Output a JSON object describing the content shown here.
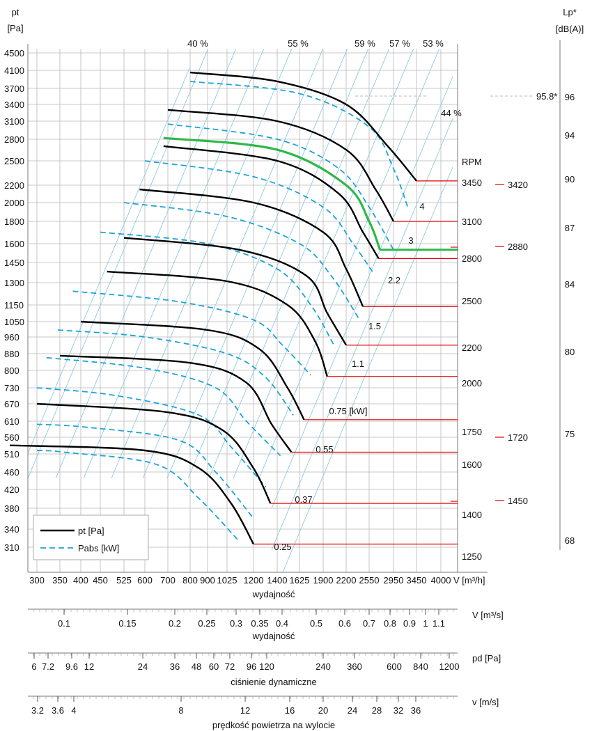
{
  "colors": {
    "grid": "#b8b8b8",
    "eff_line": "#7fc4e0",
    "pt_curve": "#000000",
    "power_curve": "#1ba4d8",
    "rpm_line": "#e00000",
    "highlight_curve": "#2db84a",
    "ref_line": "#bbbbbb"
  },
  "chart_data": {
    "type": "line",
    "scale": "log",
    "y_axis": {
      "unit_top": "pt",
      "unit_bottom": "[Pa]",
      "ticks": [
        4500,
        4100,
        3700,
        3400,
        3100,
        2800,
        2500,
        2200,
        2000,
        1800,
        1600,
        1450,
        1300,
        1150,
        1050,
        960,
        880,
        800,
        730,
        670,
        610,
        560,
        510,
        460,
        420,
        380,
        340,
        310
      ]
    },
    "x_axis": {
      "ticks": [
        300,
        350,
        400,
        450,
        525,
        600,
        700,
        800,
        900,
        1025,
        1200,
        1400,
        1625,
        1900,
        2200,
        2550,
        2950,
        3450,
        4000
      ],
      "unit_label": "V [m³/h]",
      "label": "wydajność"
    },
    "right_axis": {
      "unit_top": "Lp*",
      "unit_bottom": "[dB(A)]",
      "ticks": [
        "96",
        "94",
        "90",
        "87",
        "84",
        "80",
        "75",
        "68"
      ],
      "marker": "95.8*",
      "marker_value": 95.8
    },
    "efficiency_labels": [
      "40 %",
      "55 %",
      "59 %",
      "57 %",
      "53 %",
      "44 %"
    ],
    "rpm_header": "RPM",
    "legend": [
      {
        "key": "pt",
        "label": "pt [Pa]",
        "style": "solid"
      },
      {
        "key": "pabs",
        "label": "Pabs [kW]",
        "style": "dashed"
      }
    ],
    "pt_curves": [
      {
        "rpm": 3450,
        "points": [
          [
            800,
            4050
          ],
          [
            1400,
            3850
          ],
          [
            2200,
            3400
          ],
          [
            2850,
            2700
          ],
          [
            3450,
            2250
          ]
        ]
      },
      {
        "rpm": 3100,
        "points": [
          [
            700,
            3300
          ],
          [
            1400,
            3100
          ],
          [
            2200,
            2650
          ],
          [
            2650,
            2150
          ],
          [
            2950,
            1800
          ]
        ]
      },
      {
        "rpm": 2880,
        "highlight": true,
        "points": [
          [
            680,
            2820
          ],
          [
            1400,
            2650
          ],
          [
            2200,
            2200
          ],
          [
            2550,
            1800
          ],
          [
            2720,
            1550
          ]
        ]
      },
      {
        "rpm": 2800,
        "points": [
          [
            680,
            2700
          ],
          [
            1400,
            2500
          ],
          [
            2100,
            2100
          ],
          [
            2450,
            1700
          ],
          [
            2700,
            1480
          ]
        ]
      },
      {
        "rpm": 2500,
        "points": [
          [
            580,
            2150
          ],
          [
            1200,
            2000
          ],
          [
            1900,
            1700
          ],
          [
            2200,
            1400
          ],
          [
            2450,
            1140
          ]
        ]
      },
      {
        "rpm": 2200,
        "points": [
          [
            525,
            1650
          ],
          [
            1100,
            1550
          ],
          [
            1700,
            1350
          ],
          [
            1950,
            1100
          ],
          [
            2200,
            920
          ]
        ]
      },
      {
        "rpm": 2000,
        "points": [
          [
            470,
            1380
          ],
          [
            1025,
            1310
          ],
          [
            1500,
            1150
          ],
          [
            1800,
            940
          ],
          [
            1950,
            775
          ]
        ]
      },
      {
        "rpm": 1750,
        "points": [
          [
            400,
            1050
          ],
          [
            900,
            1000
          ],
          [
            1250,
            900
          ],
          [
            1500,
            730
          ],
          [
            1675,
            615
          ]
        ]
      },
      {
        "rpm": 1600,
        "points": [
          [
            350,
            870
          ],
          [
            800,
            835
          ],
          [
            1150,
            750
          ],
          [
            1350,
            600
          ],
          [
            1540,
            515
          ]
        ]
      },
      {
        "rpm": 1400,
        "points": [
          [
            300,
            670
          ],
          [
            700,
            640
          ],
          [
            1000,
            580
          ],
          [
            1200,
            470
          ],
          [
            1340,
            390
          ]
        ]
      },
      {
        "rpm": 1250,
        "points": [
          [
            250,
            535
          ],
          [
            600,
            520
          ],
          [
            850,
            470
          ],
          [
            1050,
            390
          ],
          [
            1200,
            315
          ]
        ]
      }
    ],
    "pabs_curves": [
      {
        "points": [
          [
            800,
            3850
          ],
          [
            1625,
            3600
          ],
          [
            2550,
            3000
          ],
          [
            2950,
            2400
          ],
          [
            3250,
            1950
          ]
        ]
      },
      {
        "points": [
          [
            700,
            3050
          ],
          [
            1400,
            2800
          ],
          [
            2100,
            2400
          ],
          [
            2550,
            1950
          ],
          [
            2950,
            1550
          ]
        ]
      },
      {
        "points": [
          [
            600,
            2500
          ],
          [
            1200,
            2300
          ],
          [
            1900,
            1950
          ],
          [
            2300,
            1600
          ],
          [
            2600,
            1380
          ]
        ]
      },
      {
        "points": [
          [
            525,
            2000
          ],
          [
            1025,
            1850
          ],
          [
            1625,
            1600
          ],
          [
            2000,
            1350
          ],
          [
            2400,
            1060
          ]
        ]
      },
      {
        "points": [
          [
            450,
            1700
          ],
          [
            900,
            1600
          ],
          [
            1400,
            1400
          ],
          [
            1750,
            1150
          ],
          [
            2050,
            910
          ]
        ]
      },
      {
        "points": [
          [
            380,
            1240
          ],
          [
            750,
            1170
          ],
          [
            1200,
            1060
          ],
          [
            1450,
            920
          ],
          [
            1750,
            780
          ]
        ]
      },
      {
        "points": [
          [
            345,
            1000
          ],
          [
            600,
            960
          ],
          [
            1025,
            880
          ],
          [
            1300,
            770
          ],
          [
            1560,
            630
          ]
        ]
      },
      {
        "points": [
          [
            320,
            860
          ],
          [
            600,
            810
          ],
          [
            950,
            730
          ],
          [
            1150,
            610
          ],
          [
            1430,
            505
          ]
        ]
      },
      {
        "points": [
          [
            300,
            730
          ],
          [
            500,
            700
          ],
          [
            850,
            630
          ],
          [
            1050,
            530
          ],
          [
            1300,
            425
          ]
        ]
      },
      {
        "points": [
          [
            300,
            600
          ],
          [
            420,
            590
          ],
          [
            750,
            550
          ],
          [
            950,
            460
          ],
          [
            1200,
            360
          ]
        ]
      },
      {
        "points": [
          [
            300,
            520
          ],
          [
            360,
            515
          ],
          [
            650,
            480
          ],
          [
            850,
            400
          ],
          [
            1100,
            320
          ]
        ]
      }
    ],
    "power_labels": [
      "4",
      "3",
      "2.2",
      "1.5",
      "1.1",
      "0.75  [kW]",
      "0.55",
      "0.37",
      "0.25"
    ],
    "rpm_labels": [
      "3450",
      "3100",
      "2800",
      "2500",
      "2200",
      "2000",
      "1750",
      "1600",
      "1400",
      "1250"
    ],
    "noise_rpm_labels": [
      "3420",
      "2880",
      "1720",
      "1450"
    ],
    "lower_scales": [
      {
        "key": "flow_ms",
        "unit": "V  [m³/s]",
        "caption": "wydajność",
        "ticks": [
          "0.1",
          "0.15",
          "0.2",
          "0.25",
          "0.3",
          "0.35",
          "0.4",
          "0.5",
          "0.6",
          "0.7",
          "0.8",
          "0.9",
          "1",
          "1.1"
        ]
      },
      {
        "key": "pd",
        "unit": "pd  [Pa]",
        "caption": "ciśnienie dynamiczne",
        "ticks": [
          "6",
          "7.2",
          "9.6",
          "12",
          "24",
          "36",
          "48",
          "60",
          "72",
          "96",
          "120",
          "240",
          "360",
          "600",
          "840",
          "1200"
        ]
      },
      {
        "key": "v",
        "unit": "v  [m/s]",
        "caption": "prędkość powietrza na wylocie",
        "ticks": [
          "3.2",
          "3.6",
          "4",
          "8",
          "12",
          "16",
          "20",
          "24",
          "28",
          "32",
          "36"
        ]
      }
    ]
  }
}
